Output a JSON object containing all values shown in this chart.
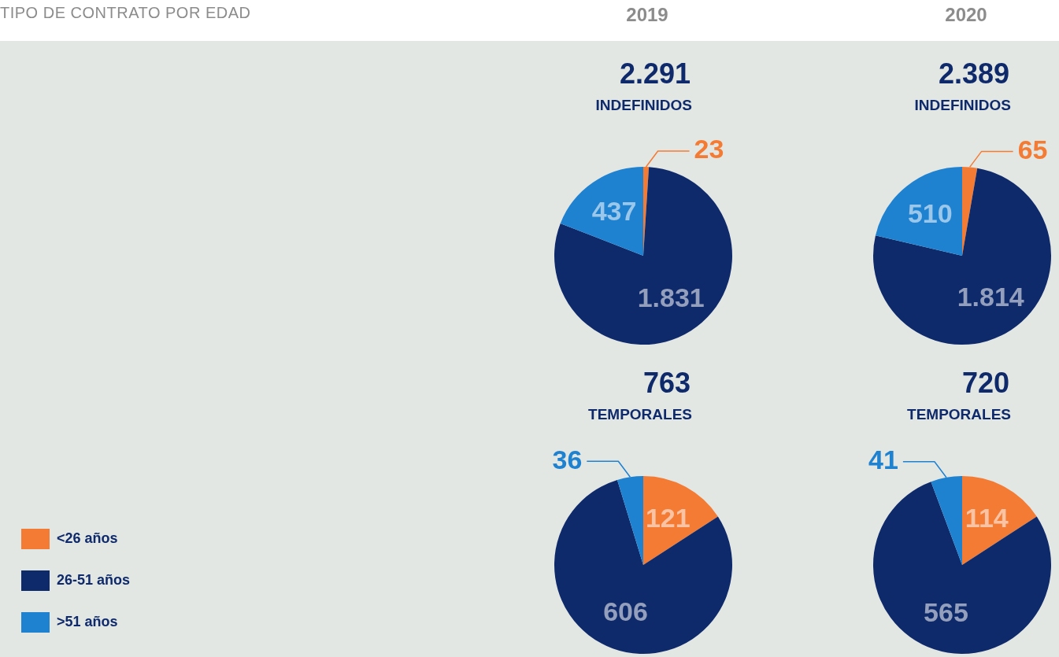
{
  "chart_data": [
    {
      "type": "pie",
      "title": "2.291",
      "subtitle": "INDEFINIDOS",
      "annotations": [
        "TIPO DE CONTRATO POR EDAD",
        "2019"
      ],
      "categories": [
        null,
        null,
        null
      ],
      "values": [
        23,
        1831,
        437
      ],
      "value_labels": [
        "23",
        "1.831",
        "437"
      ],
      "colors": [
        "#f47b34",
        "#0f2a6b",
        "#1e82d0"
      ]
    },
    {
      "type": "pie",
      "title": "2.389",
      "subtitle": "INDEFINIDOS",
      "annotations": [
        "2020"
      ],
      "categories": [
        null,
        null,
        null
      ],
      "values": [
        65,
        1814,
        510
      ],
      "value_labels": [
        "65",
        "1.814",
        "510"
      ],
      "colors": [
        "#f47b34",
        "#0f2a6b",
        "#1e82d0"
      ]
    },
    {
      "type": "pie",
      "title": "763",
      "subtitle": "TEMPORALES",
      "legend": "bottom left",
      "categories": [
        "<26 años",
        "26-51 años",
        ">51 años"
      ],
      "values": [
        121,
        606,
        36
      ],
      "value_labels": [
        "121",
        "606",
        "36"
      ],
      "colors": [
        "#f47b34",
        "#0f2a6b",
        "#1e82d0"
      ]
    },
    {
      "type": "pie",
      "title": "720",
      "subtitle": "TEMPORALES",
      "categories": [
        null,
        null,
        null
      ],
      "values": [
        114,
        565,
        41
      ],
      "value_labels": [
        "114",
        "565",
        "41"
      ],
      "colors": [
        "#f47b34",
        "#0f2a6b",
        "#1e82d0"
      ]
    }
  ]
}
